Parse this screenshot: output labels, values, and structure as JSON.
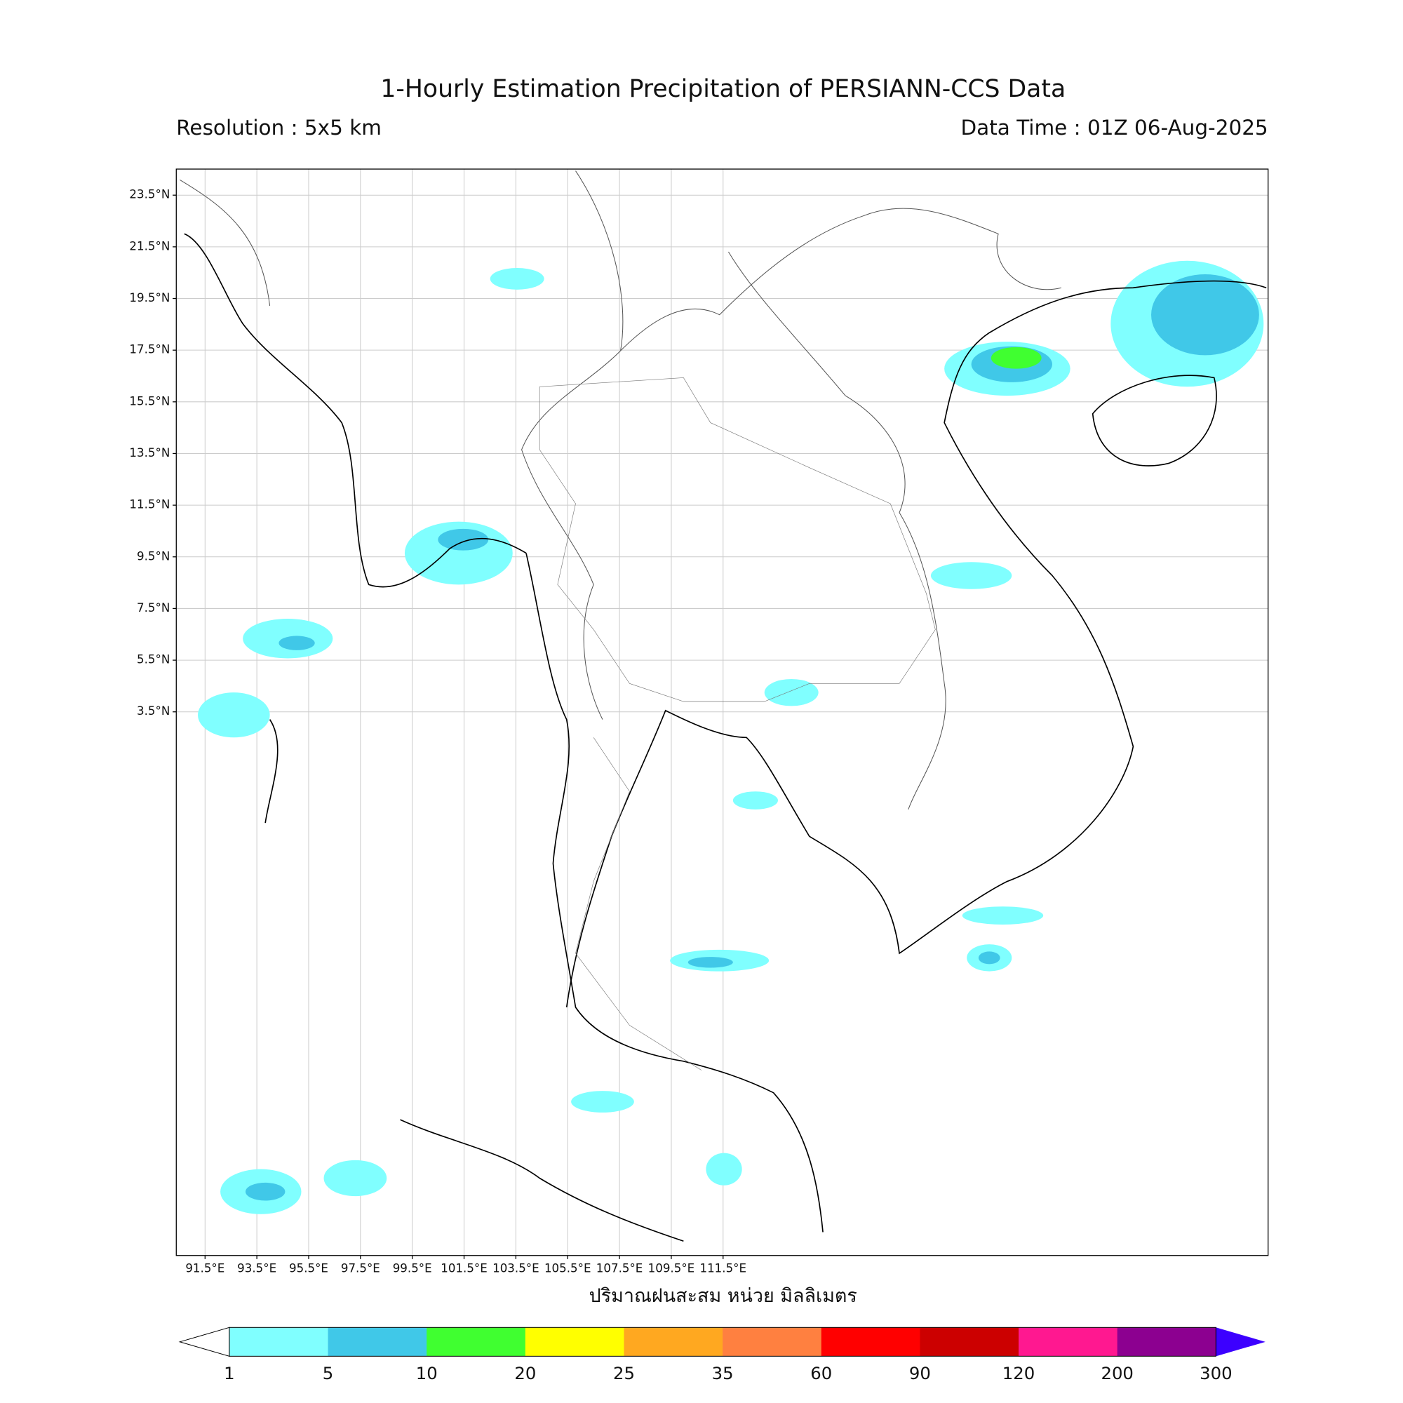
{
  "header": {
    "title": "1-Hourly Estimation Precipitation of PERSIANN-CCS Data",
    "resolution": "Resolution : 5x5 km",
    "data_time": "Data Time : 01Z 06-Aug-2025"
  },
  "map": {
    "lat_ticks": [
      "23.5°N",
      "21.5°N",
      "19.5°N",
      "17.5°N",
      "15.5°N",
      "13.5°N",
      "11.5°N",
      "9.5°N",
      "7.5°N",
      "5.5°N",
      "3.5°N"
    ],
    "lon_ticks": [
      "91.5°E",
      "93.5°E",
      "95.5°E",
      "97.5°E",
      "99.5°E",
      "101.5°E",
      "103.5°E",
      "105.5°E",
      "107.5°E",
      "109.5°E",
      "111.5°E"
    ],
    "xlabel": "ปริมาณฝนสะสม หน่วย มิลลิเมตร"
  },
  "colorbar": {
    "levels": [
      "1",
      "5",
      "10",
      "20",
      "25",
      "35",
      "60",
      "90",
      "120",
      "200",
      "300"
    ],
    "colors": [
      "#80ffff",
      "#40c8e8",
      "#40ff30",
      "#ffff00",
      "#ffa820",
      "#ff8040",
      "#ff0000",
      "#cc0000",
      "#ff1890",
      "#8c0090"
    ],
    "under_color": "#ffffff",
    "over_color": "#3c00ff"
  }
}
